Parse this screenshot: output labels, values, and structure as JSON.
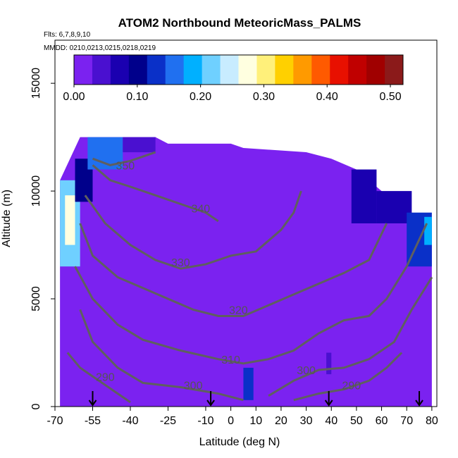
{
  "chart_data": {
    "type": "heatmap",
    "title": "ATOM2 Northbound MeteoricMass_PALMS",
    "flights_label": "Flts: 6,7,8,9,10",
    "dates_label": "MMDD: 0210,0213,0215,0218,0219",
    "xlabel": "Latitude (deg N)",
    "ylabel": "Altitude (m)",
    "xlim": [
      -70,
      82
    ],
    "ylim": [
      0,
      17000
    ],
    "x_ticks": [
      {
        "value": -70,
        "label": "-70"
      },
      {
        "value": -55,
        "label": "-55"
      },
      {
        "value": -40,
        "label": "-40"
      },
      {
        "value": -25,
        "label": "-25"
      },
      {
        "value": -10,
        "label": "-10"
      },
      {
        "value": 0,
        "label": "0"
      },
      {
        "value": 10,
        "label": "10"
      },
      {
        "value": 20,
        "label": "20"
      },
      {
        "value": 30,
        "label": "30"
      },
      {
        "value": 40,
        "label": "40"
      },
      {
        "value": 50,
        "label": "50"
      },
      {
        "value": 60,
        "label": "60"
      },
      {
        "value": 70,
        "label": "70"
      },
      {
        "value": 80,
        "label": "80"
      }
    ],
    "y_ticks": [
      {
        "value": 0,
        "label": "0"
      },
      {
        "value": 5000,
        "label": "5000"
      },
      {
        "value": 10000,
        "label": "10000"
      },
      {
        "value": 15000,
        "label": "15000"
      }
    ],
    "colorbar": {
      "min": 0.0,
      "max": 0.52,
      "ticks": [
        {
          "value": 0.0,
          "label": "0.00"
        },
        {
          "value": 0.1,
          "label": "0.10"
        },
        {
          "value": 0.2,
          "label": "0.20"
        },
        {
          "value": 0.3,
          "label": "0.30"
        },
        {
          "value": 0.4,
          "label": "0.40"
        },
        {
          "value": 0.5,
          "label": "0.50"
        }
      ],
      "colors": [
        "#7b22f0",
        "#4a10d0",
        "#1a00b0",
        "#00008b",
        "#0a30c8",
        "#2070f0",
        "#00b0ff",
        "#6fd0ff",
        "#c8ecff",
        "#ffffe0",
        "#fff07a",
        "#ffd000",
        "#ff9a00",
        "#ff5a00",
        "#e81000",
        "#c00000",
        "#a00000",
        "#8b1a1a"
      ]
    },
    "background_value": 0.0,
    "high_regions": [
      {
        "lat": [
          -68,
          -60
        ],
        "alt": [
          6500,
          10500
        ],
        "value": 0.22
      },
      {
        "lat": [
          -66,
          -62
        ],
        "alt": [
          7500,
          9800
        ],
        "value": 0.28
      },
      {
        "lat": [
          -62,
          -55
        ],
        "alt": [
          9500,
          11500
        ],
        "value": 0.1
      },
      {
        "lat": [
          -57,
          -43
        ],
        "alt": [
          11000,
          12500
        ],
        "value": 0.15
      },
      {
        "lat": [
          -43,
          -30
        ],
        "alt": [
          11800,
          12500
        ],
        "value": 0.05
      },
      {
        "lat": [
          48,
          58
        ],
        "alt": [
          8500,
          11000
        ],
        "value": 0.08
      },
      {
        "lat": [
          58,
          72
        ],
        "alt": [
          8500,
          10000
        ],
        "value": 0.06
      },
      {
        "lat": [
          70,
          80
        ],
        "alt": [
          6500,
          9000
        ],
        "value": 0.12
      },
      {
        "lat": [
          77,
          80
        ],
        "alt": [
          7500,
          8800
        ],
        "value": 0.18
      },
      {
        "lat": [
          5,
          9
        ],
        "alt": [
          300,
          1800
        ],
        "value": 0.12
      },
      {
        "lat": [
          38,
          40
        ],
        "alt": [
          1500,
          2500
        ],
        "value": 0.04
      }
    ],
    "contours": [
      {
        "level": "290",
        "label_at": [
          -50,
          1200
        ],
        "points": [
          [
            -65,
            2500
          ],
          [
            -60,
            1800
          ],
          [
            -55,
            1400
          ],
          [
            -50,
            1000
          ],
          [
            -45,
            600
          ],
          [
            -40,
            200
          ]
        ]
      },
      {
        "level": "290",
        "label_at": [
          48,
          800
        ],
        "points": [
          [
            25,
            300
          ],
          [
            35,
            600
          ],
          [
            45,
            800
          ],
          [
            55,
            1200
          ],
          [
            62,
            1800
          ],
          [
            68,
            2500
          ]
        ]
      },
      {
        "level": "300",
        "label_at": [
          -15,
          800
        ],
        "points": [
          [
            -60,
            4500
          ],
          [
            -55,
            3000
          ],
          [
            -45,
            1800
          ],
          [
            -35,
            1100
          ],
          [
            -20,
            900
          ],
          [
            -5,
            600
          ],
          [
            5,
            300
          ]
        ]
      },
      {
        "level": "300",
        "label_at": [
          30,
          1500
        ],
        "points": [
          [
            15,
            500
          ],
          [
            25,
            1200
          ],
          [
            35,
            1700
          ],
          [
            45,
            1800
          ],
          [
            55,
            2200
          ],
          [
            65,
            3000
          ],
          [
            72,
            4500
          ],
          [
            80,
            6000
          ]
        ]
      },
      {
        "level": "310",
        "label_at": [
          0,
          2000
        ],
        "points": [
          [
            -62,
            6500
          ],
          [
            -55,
            5000
          ],
          [
            -45,
            3800
          ],
          [
            -35,
            3100
          ],
          [
            -20,
            2600
          ],
          [
            -5,
            2200
          ],
          [
            5,
            2000
          ],
          [
            15,
            2200
          ],
          [
            25,
            2600
          ],
          [
            35,
            3400
          ],
          [
            45,
            4000
          ],
          [
            55,
            4200
          ],
          [
            62,
            5000
          ],
          [
            70,
            6500
          ],
          [
            78,
            8500
          ]
        ]
      },
      {
        "level": "320",
        "label_at": [
          3,
          4300
        ],
        "points": [
          [
            -60,
            8500
          ],
          [
            -55,
            7000
          ],
          [
            -45,
            6000
          ],
          [
            -35,
            5500
          ],
          [
            -25,
            5000
          ],
          [
            -15,
            4500
          ],
          [
            -5,
            4200
          ],
          [
            5,
            4200
          ],
          [
            15,
            4700
          ],
          [
            25,
            5200
          ],
          [
            35,
            5700
          ],
          [
            45,
            6200
          ],
          [
            55,
            6800
          ],
          [
            62,
            8500
          ]
        ]
      },
      {
        "level": "330",
        "label_at": [
          -20,
          6500
        ],
        "points": [
          [
            -58,
            9800
          ],
          [
            -50,
            8500
          ],
          [
            -40,
            7500
          ],
          [
            -30,
            6800
          ],
          [
            -20,
            6400
          ],
          [
            -10,
            6600
          ],
          [
            0,
            7000
          ],
          [
            10,
            7200
          ],
          [
            20,
            8200
          ],
          [
            25,
            9000
          ],
          [
            28,
            10000
          ]
        ]
      },
      {
        "level": "340",
        "label_at": [
          -12,
          9000
        ],
        "points": [
          [
            -55,
            11200
          ],
          [
            -48,
            10500
          ],
          [
            -40,
            10200
          ],
          [
            -30,
            9800
          ],
          [
            -20,
            9400
          ],
          [
            -10,
            9000
          ],
          [
            -5,
            8600
          ]
        ]
      },
      {
        "level": "350",
        "label_at": [
          -42,
          11000
        ],
        "points": [
          [
            -55,
            11500
          ],
          [
            -48,
            11200
          ],
          [
            -40,
            11400
          ],
          [
            -30,
            11800
          ]
        ]
      }
    ],
    "flight_markers": [
      -55,
      -8,
      39,
      75
    ]
  }
}
